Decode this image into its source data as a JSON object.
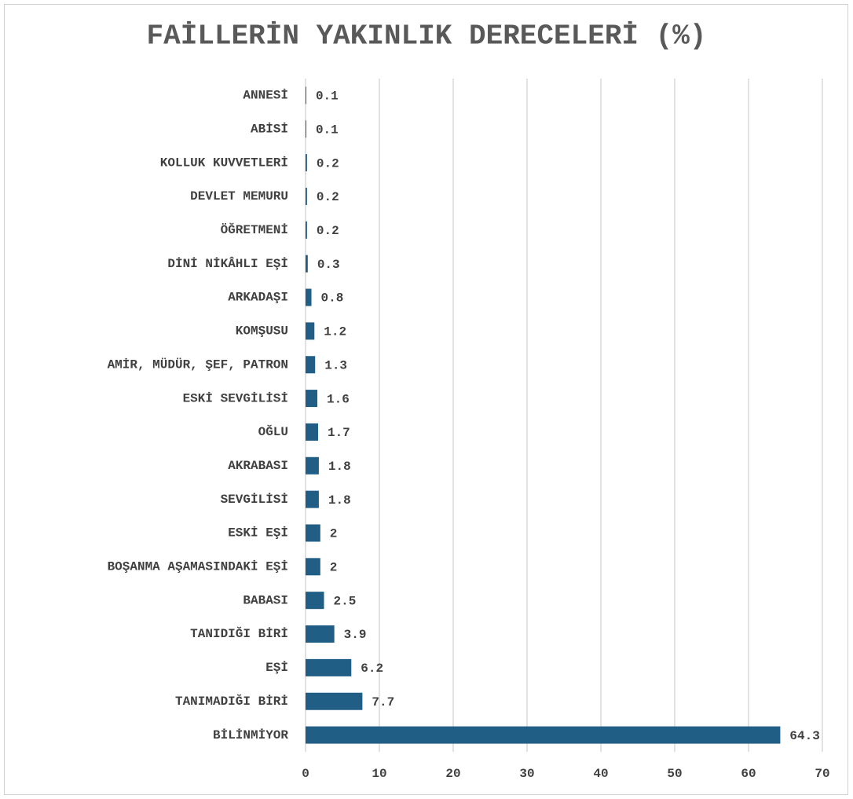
{
  "chart_data": {
    "type": "bar",
    "orientation": "horizontal",
    "title": "FAİLLERİN YAKINLIK DERECELERİ (%)",
    "categories": [
      "ANNESİ",
      "ABİSİ",
      "KOLLUK KUVVETLERİ",
      "DEVLET MEMURU",
      "ÖĞRETMENİ",
      "DİNİ NİKÂHLI EŞİ",
      "ARKADAŞI",
      "KOMŞUSU",
      "AMİR, MÜDÜR, ŞEF, PATRON",
      "ESKİ SEVGİLİSİ",
      "OĞLU",
      "AKRABASI",
      "SEVGİLİSİ",
      "ESKİ EŞİ",
      "BOŞANMA AŞAMASINDAKİ EŞİ",
      "BABASI",
      "TANIDIĞI BİRİ",
      "EŞİ",
      "TANIMADIĞI BİRİ",
      "BİLİNMİYOR"
    ],
    "values": [
      0.1,
      0.1,
      0.2,
      0.2,
      0.2,
      0.3,
      0.8,
      1.2,
      1.3,
      1.6,
      1.7,
      1.8,
      1.8,
      2,
      2,
      2.5,
      3.9,
      6.2,
      7.7,
      64.3
    ],
    "color": "#215e86",
    "xlim": [
      0,
      70
    ],
    "xticks": [
      0,
      10,
      20,
      30,
      40,
      50,
      60,
      70
    ],
    "grid": true
  }
}
